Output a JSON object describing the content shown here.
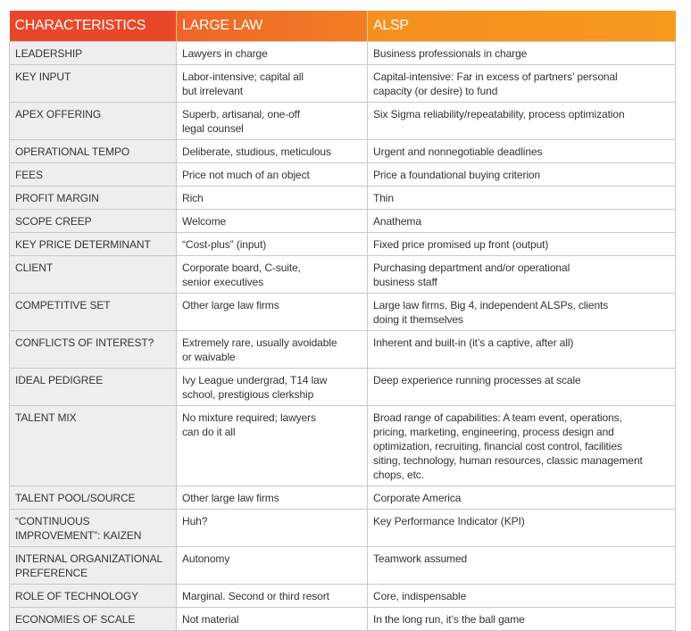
{
  "header": {
    "col1": "CHARACTERISTICS",
    "col2": "LARGE LAW",
    "col3": "ALSP"
  },
  "colors": {
    "header_start": "#e9472a",
    "header_end": "#f79a1e",
    "first_col_bg": "#eeeeee"
  },
  "rows": [
    {
      "k": "LEADERSHIP",
      "a": "Lawyers in charge",
      "b": "Business professionals in charge"
    },
    {
      "k": "KEY INPUT",
      "a": "Labor-intensive; capital all\nbut irrelevant",
      "b": "Capital-intensive: Far in excess of partners’ personal\ncapacity (or desire) to fund"
    },
    {
      "k": "APEX OFFERING",
      "a": "Superb, artisanal, one-off\nlegal counsel",
      "b": "Six Sigma reliability/repeatability, process optimization"
    },
    {
      "k": "OPERATIONAL TEMPO",
      "a": "Deliberate, studious, meticulous",
      "b": "Urgent and nonnegotiable deadlines"
    },
    {
      "k": "FEES",
      "a": "Price not much of an object",
      "b": "Price a foundational buying criterion"
    },
    {
      "k": "PROFIT MARGIN",
      "a": "Rich",
      "b": "Thin"
    },
    {
      "k": "SCOPE CREEP",
      "a": "Welcome",
      "b": "Anathema"
    },
    {
      "k": "KEY PRICE DETERMINANT",
      "a": "“Cost-plus” (input)",
      "b": "Fixed price promised up front (output)"
    },
    {
      "k": "CLIENT",
      "a": "Corporate board, C-suite,\nsenior executives",
      "b": "Purchasing department and/or operational\nbusiness staff"
    },
    {
      "k": "COMPETITIVE SET",
      "a": "Other large law firms",
      "b": "Large law firms, Big 4, independent ALSPs, clients\ndoing it themselves"
    },
    {
      "k": "CONFLICTS OF INTEREST?",
      "a": "Extremely rare, usually avoidable\nor waivable",
      "b": "Inherent and built-in (it’s a captive, after all)"
    },
    {
      "k": "IDEAL PEDIGREE",
      "a": "Ivy League undergrad, T14 law\nschool, prestigious clerkship",
      "b": "Deep experience running processes at scale"
    },
    {
      "k": "TALENT MIX",
      "a": "No mixture required; lawyers\ncan do it all",
      "b": "Broad range of capabilities: A team event, operations,\npricing, marketing, engineering, process design and\noptimization, recruiting, financial cost control, facilities\nsiting, technology, human resources, classic management\nchops, etc."
    },
    {
      "k": "TALENT POOL/SOURCE",
      "a": "Other large law firms",
      "b": "Corporate America"
    },
    {
      "k": "“CONTINUOUS\nIMPROVEMENT”: KAIZEN",
      "a": "Huh?",
      "b": "Key Performance Indicator (KPI)"
    },
    {
      "k": "INTERNAL ORGANIZATIONAL\nPREFERENCE",
      "a": "Autonomy",
      "b": "Teamwork assumed"
    },
    {
      "k": "ROLE OF TECHNOLOGY",
      "a": "Marginal. Second or third resort",
      "b": "Core, indispensable"
    },
    {
      "k": "ECONOMIES OF SCALE",
      "a": "Not material",
      "b": "In the long run, it’s the ball game"
    }
  ]
}
